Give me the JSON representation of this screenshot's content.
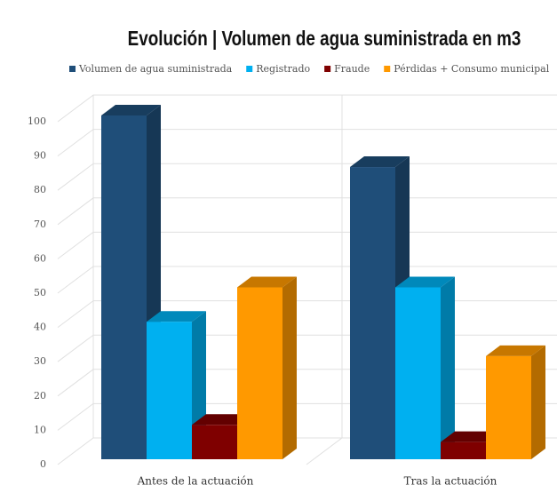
{
  "chart_data": {
    "type": "bar",
    "title": "Evolución | Volumen de agua suministrada en m3",
    "categories": [
      "Antes de la actuación",
      "Tras la actuación"
    ],
    "series": [
      {
        "name": "Volumen de agua suministrada",
        "color": "#1f4e79",
        "values": [
          100,
          85
        ]
      },
      {
        "name": "Registrado",
        "color": "#00b0f0",
        "values": [
          40,
          50
        ]
      },
      {
        "name": "Fraude",
        "color": "#7f0000",
        "values": [
          10,
          5
        ]
      },
      {
        "name": "Pérdidas + Consumo municipal",
        "color": "#ff9900",
        "values": [
          50,
          30
        ]
      }
    ],
    "ylim": [
      0,
      100
    ],
    "yticks": [
      0,
      10,
      20,
      30,
      40,
      50,
      60,
      70,
      80,
      90,
      100
    ],
    "grid": true,
    "legend": "top"
  }
}
